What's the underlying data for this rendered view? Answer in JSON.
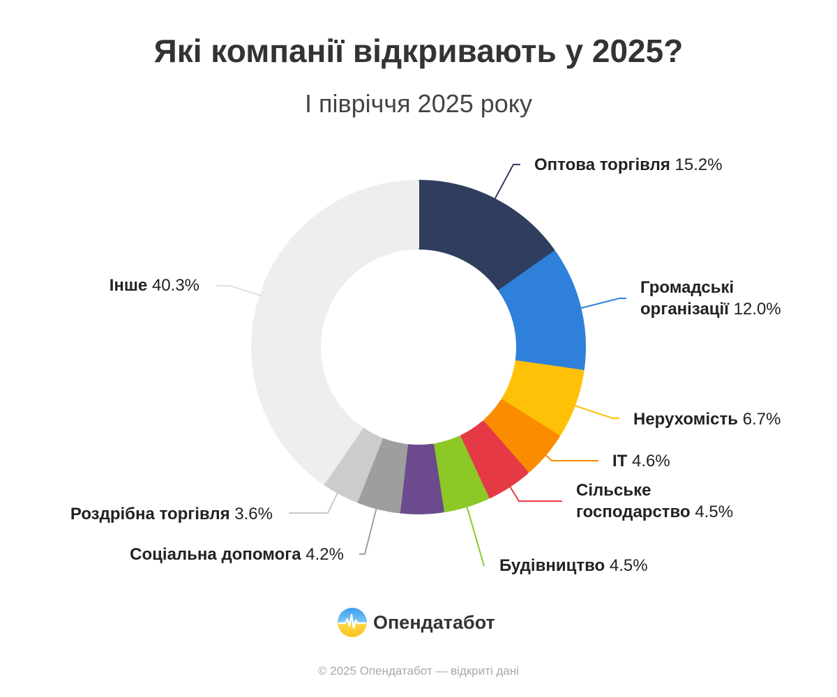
{
  "chart_data": {
    "type": "pie",
    "title": "Які компанії відкривають у 2025?",
    "subtitle": "І півріччя 2025 року",
    "unit": "%",
    "slices": [
      {
        "name": "Оптова торгівля",
        "value": 15.2,
        "value_label": "15.2%",
        "color": "#2f3e5e"
      },
      {
        "name": "Громадські організації",
        "name_lines": [
          "Громадські",
          "організації"
        ],
        "value": 12.0,
        "value_label": "12.0%",
        "color": "#2e80db"
      },
      {
        "name": "Нерухомість",
        "value": 6.7,
        "value_label": "6.7%",
        "color": "#ffc107"
      },
      {
        "name": "IT",
        "value": 4.6,
        "value_label": "4.6%",
        "color": "#fb8c00"
      },
      {
        "name": "Сільське господарство",
        "name_lines": [
          "Сільське",
          "господарство"
        ],
        "value": 4.5,
        "value_label": "4.5%",
        "color": "#e53946"
      },
      {
        "name": "Будівництво",
        "value": 4.5,
        "value_label": "4.5%",
        "color": "#8cc826"
      },
      {
        "name": "",
        "value": 4.2,
        "value_label": "",
        "color": "#6b4b8e"
      },
      {
        "name": "Соціальна допомога",
        "value": 4.2,
        "value_label": "4.2%",
        "color": "#9e9e9e"
      },
      {
        "name": "Роздрібна торгівля",
        "value": 3.6,
        "value_label": "3.6%",
        "color": "#cccccc"
      },
      {
        "name": "Інше",
        "value": 40.3,
        "value_label": "40.3%",
        "color": "#eeeeee"
      }
    ]
  },
  "brand": {
    "name": "Опендатабот",
    "logo_icon": "opendatabot-logo-icon"
  },
  "footer": {
    "text": "© 2025 Опендатабот — відкриті дані"
  }
}
